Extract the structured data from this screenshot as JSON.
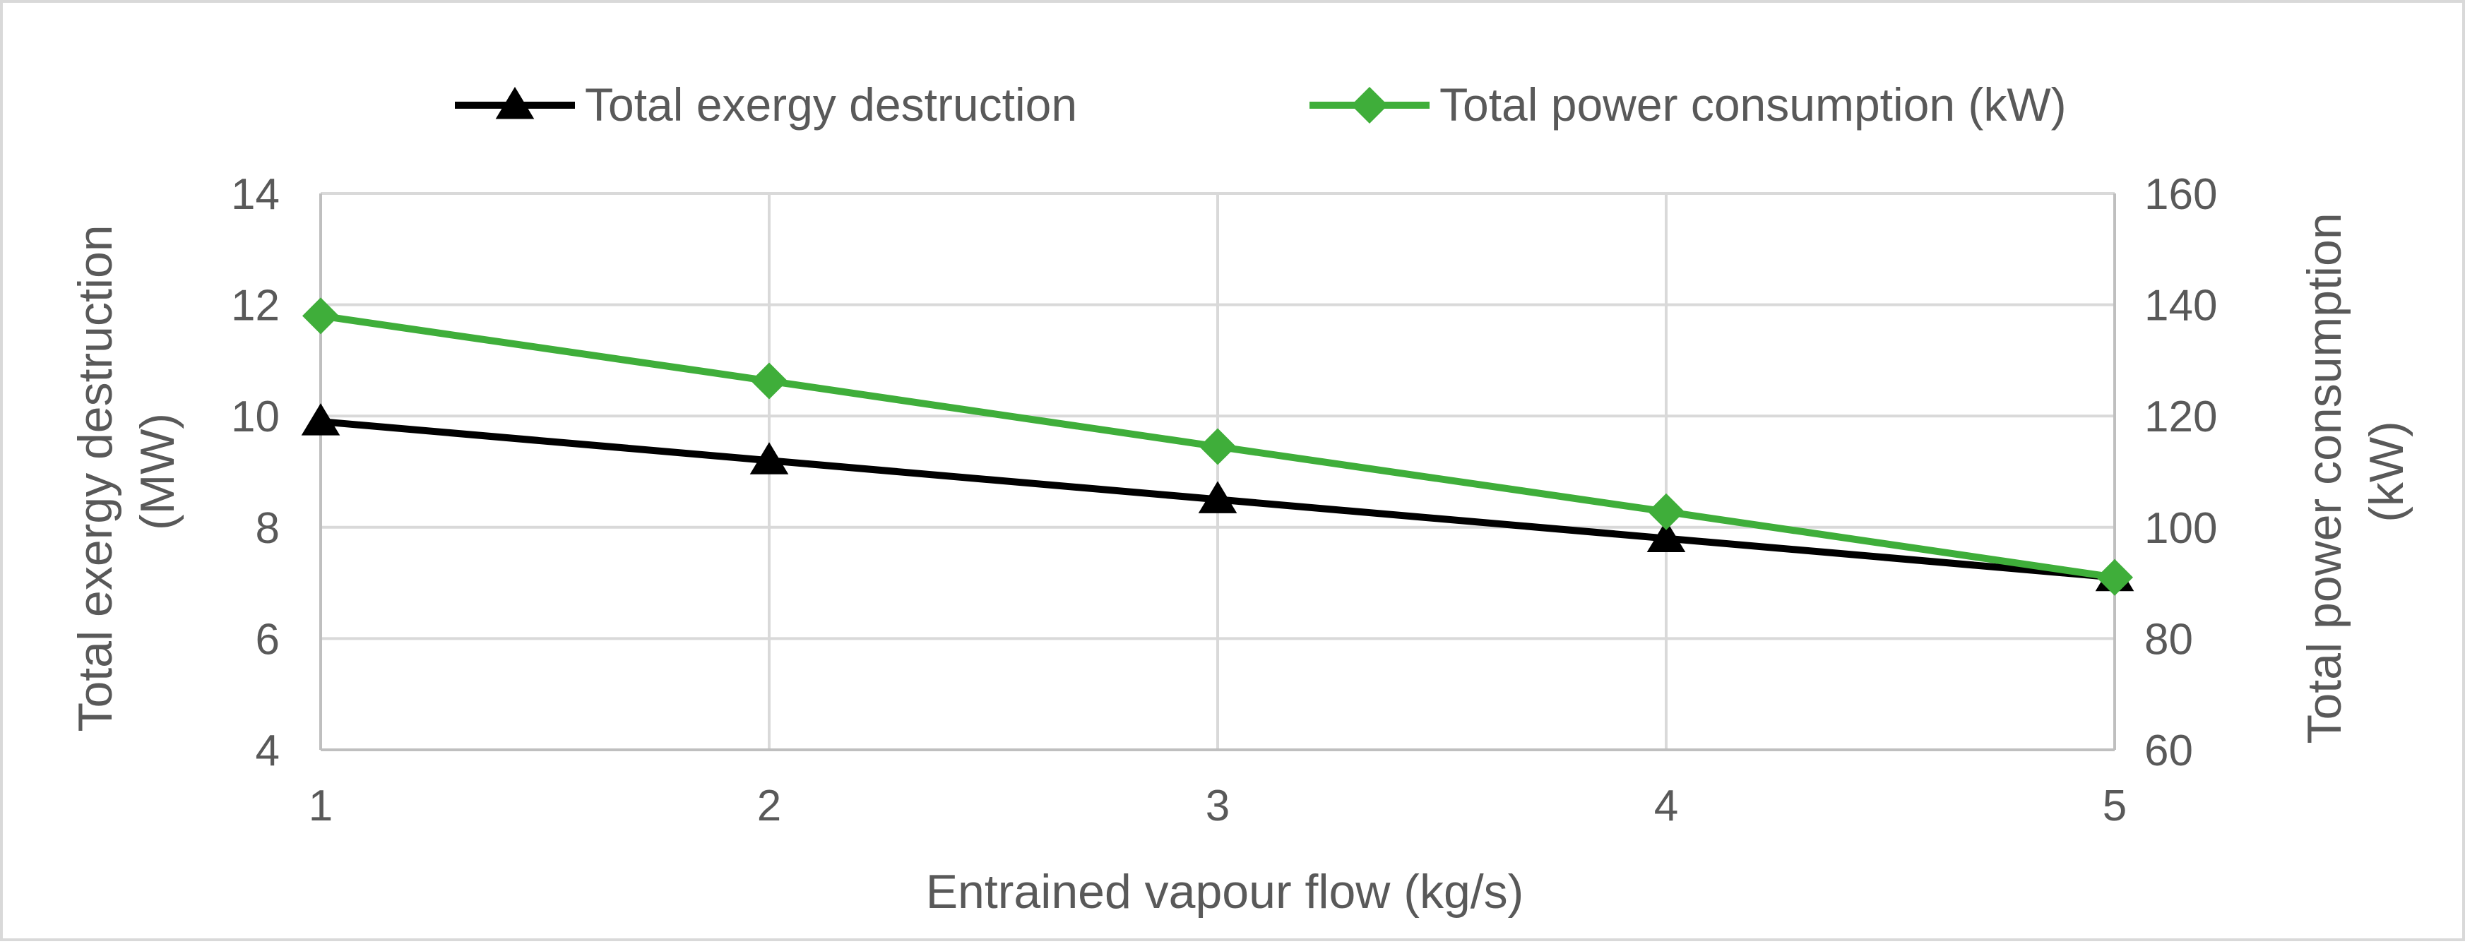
{
  "chart_data": {
    "type": "line",
    "title": "",
    "x": [
      1,
      2,
      3,
      4,
      5
    ],
    "xlabel": "Entrained vapour flow (kg/s)",
    "xlim": [
      1,
      5
    ],
    "x_ticks": [
      "1",
      "2",
      "3",
      "4",
      "5"
    ],
    "y_left": {
      "label_lines": [
        "Total exergy destruction",
        "(MW)"
      ],
      "lim": [
        4,
        14
      ],
      "ticks": [
        "4",
        "6",
        "8",
        "10",
        "12",
        "14"
      ]
    },
    "y_right": {
      "label_lines": [
        "Total power consumption",
        "(kW)"
      ],
      "lim": [
        60,
        160
      ],
      "ticks": [
        "60",
        "80",
        "100",
        "120",
        "140",
        "160"
      ]
    },
    "grid": true,
    "legend_position": "top",
    "series": [
      {
        "name": "Total exergy destruction",
        "axis": "left",
        "color": "#000000",
        "marker": "triangle",
        "values": [
          9.9,
          9.2,
          8.5,
          7.8,
          7.1
        ]
      },
      {
        "name": "Total power consumption (kW)",
        "axis": "right",
        "color": "#3fae3a",
        "marker": "diamond",
        "values": [
          138,
          126.3,
          114.5,
          102.8,
          91
        ]
      }
    ]
  }
}
